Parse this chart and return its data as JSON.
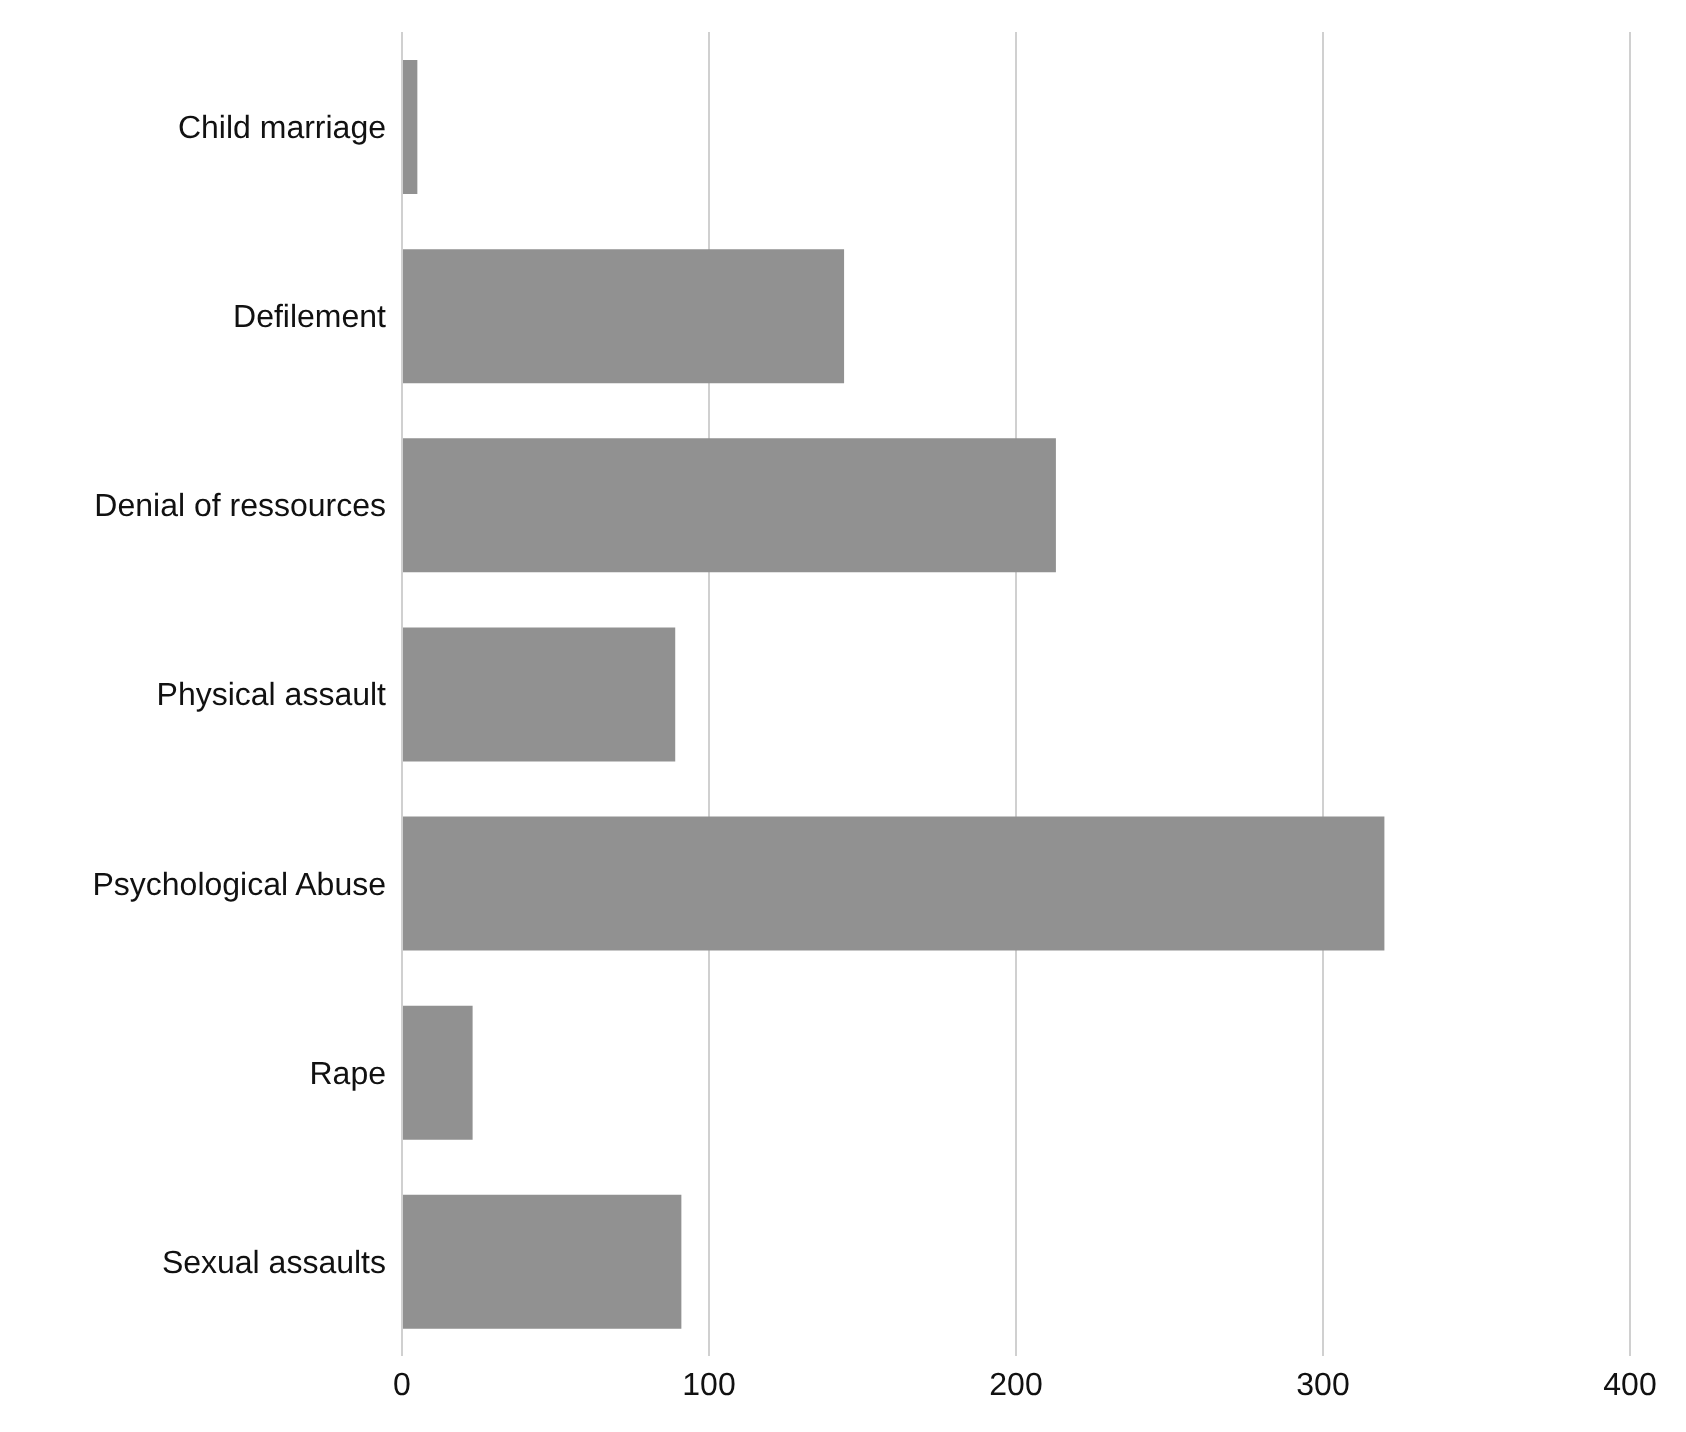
{
  "chart_data": {
    "type": "bar",
    "orientation": "horizontal",
    "categories": [
      "Child marriage",
      "Defilement",
      "Denial of ressources",
      "Physical assault",
      "Psychological Abuse",
      "Rape",
      "Sexual assaults"
    ],
    "values": [
      5,
      144,
      213,
      89,
      320,
      23,
      91
    ],
    "color": "#919191",
    "xlim": [
      0,
      400
    ],
    "xticks": [
      0,
      100,
      200,
      300,
      400
    ],
    "grid": "x"
  }
}
